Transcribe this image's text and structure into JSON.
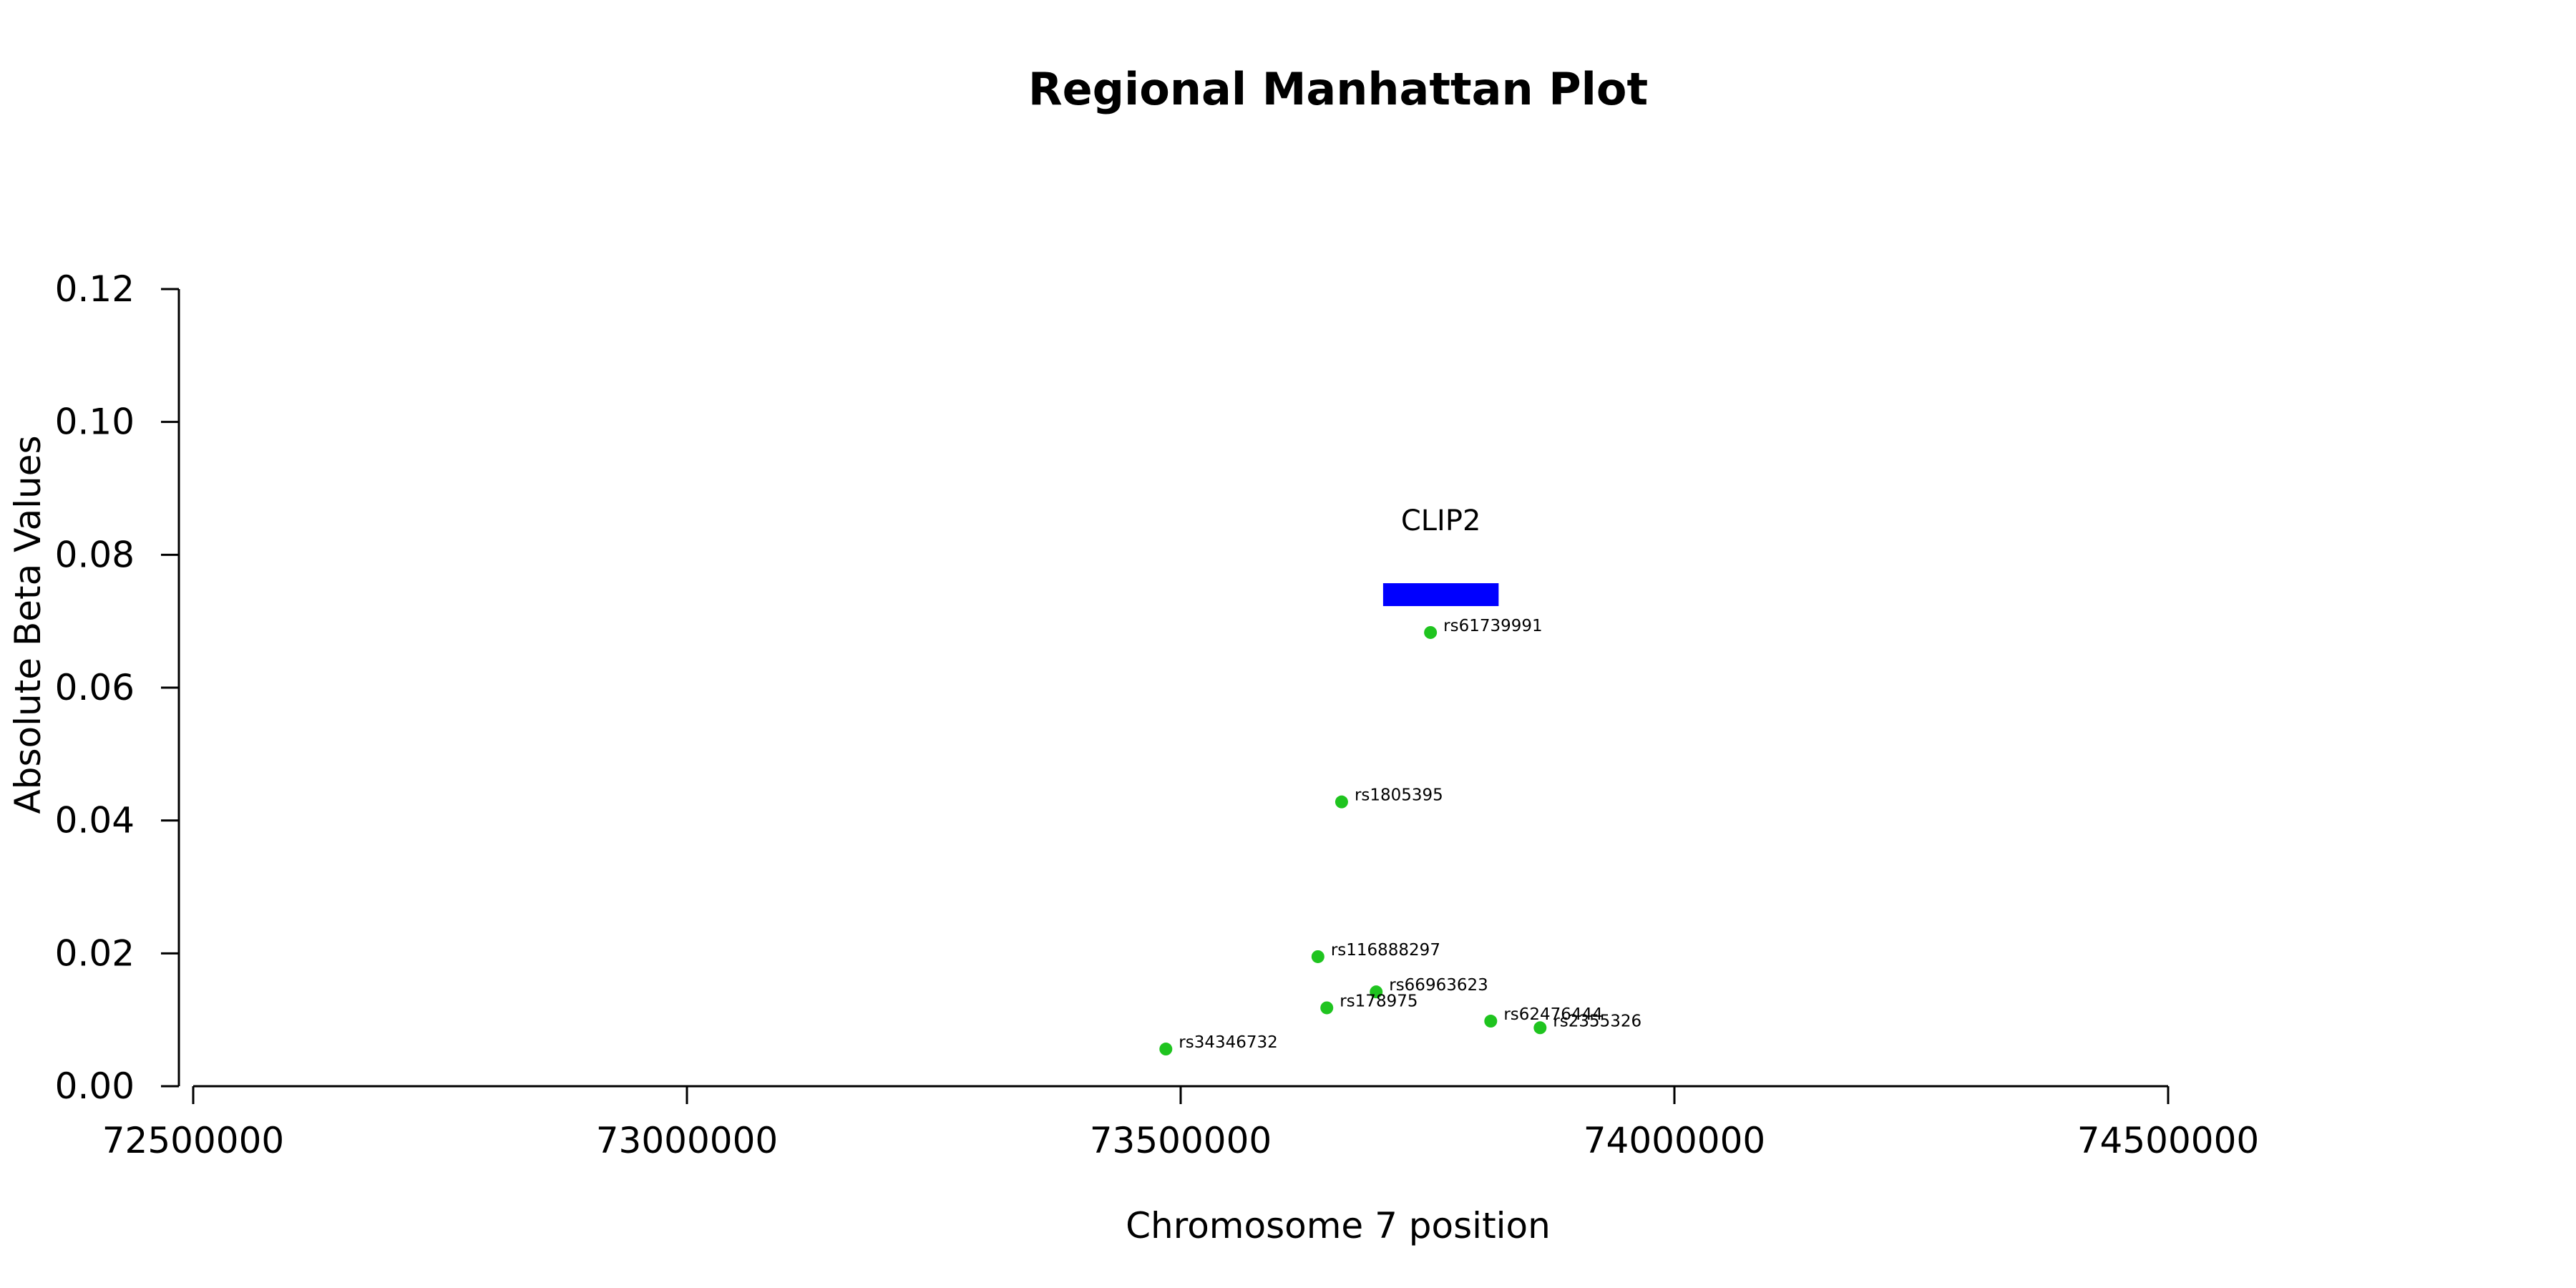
{
  "chart_data": {
    "type": "scatter",
    "title": "Regional Manhattan Plot",
    "xlabel": "Chromosome 7 position",
    "ylabel": "Absolute Beta Values",
    "xlim": [
      72500000,
      74500000
    ],
    "ylim": [
      0,
      0.12
    ],
    "x_ticks": [
      72500000,
      73000000,
      73500000,
      74000000,
      74500000
    ],
    "x_tick_labels": [
      "72500000",
      "73000000",
      "73500000",
      "74000000",
      "74500000"
    ],
    "y_ticks": [
      0,
      0.02,
      0.04,
      0.06,
      0.08,
      0.1,
      0.12
    ],
    "y_tick_labels": [
      "0.00",
      "0.02",
      "0.04",
      "0.06",
      "0.08",
      "0.10",
      "0.12"
    ],
    "grid": false,
    "point_color": "#1fc41f",
    "gene_color": "#0000ff",
    "genes": [
      {
        "name": "CLIP2",
        "start": 73705000,
        "end": 73822000,
        "y": 0.074
      }
    ],
    "points": [
      {
        "label": "rs61739991",
        "x": 73753000,
        "y": 0.0683
      },
      {
        "label": "rs1805395",
        "x": 73663000,
        "y": 0.0428
      },
      {
        "label": "rs116888297",
        "x": 73639000,
        "y": 0.0195
      },
      {
        "label": "rs66963623",
        "x": 73698000,
        "y": 0.0142
      },
      {
        "label": "rs178975",
        "x": 73648000,
        "y": 0.0118
      },
      {
        "label": "rs62476444",
        "x": 73814000,
        "y": 0.0098
      },
      {
        "label": "rs2355326",
        "x": 73864000,
        "y": 0.0088
      },
      {
        "label": "rs34346732",
        "x": 73485000,
        "y": 0.0056
      }
    ]
  }
}
